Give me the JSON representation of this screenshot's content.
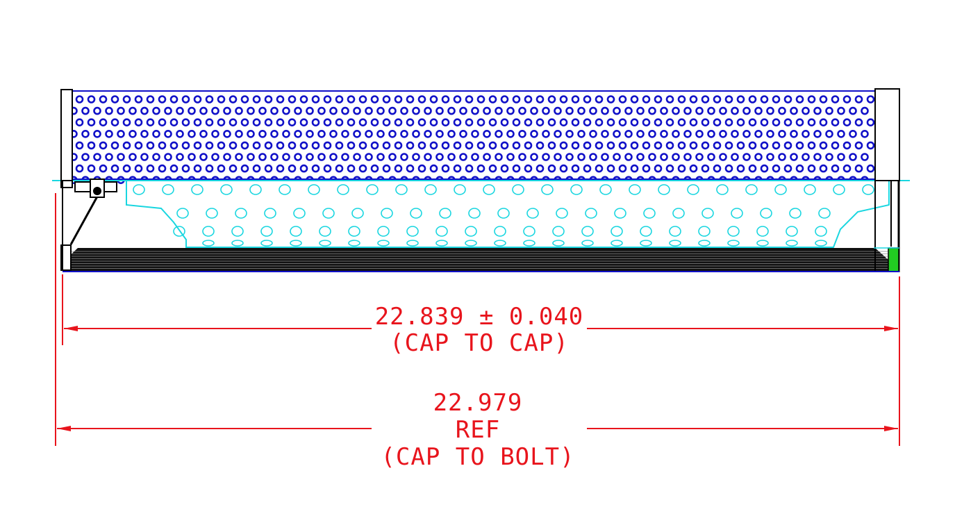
{
  "colors": {
    "outer_perforation": "#1010c8",
    "inner_core": "#19d6e0",
    "dimension": "#e8141c",
    "outline": "#000000",
    "seal": "#22cc22"
  },
  "dimensions": {
    "cap_to_cap": {
      "value": "22.839 ± 0.040",
      "note": "(CAP TO CAP)"
    },
    "cap_to_bolt": {
      "value": "22.979",
      "ref": "REF",
      "note": "(CAP TO BOLT)"
    }
  }
}
